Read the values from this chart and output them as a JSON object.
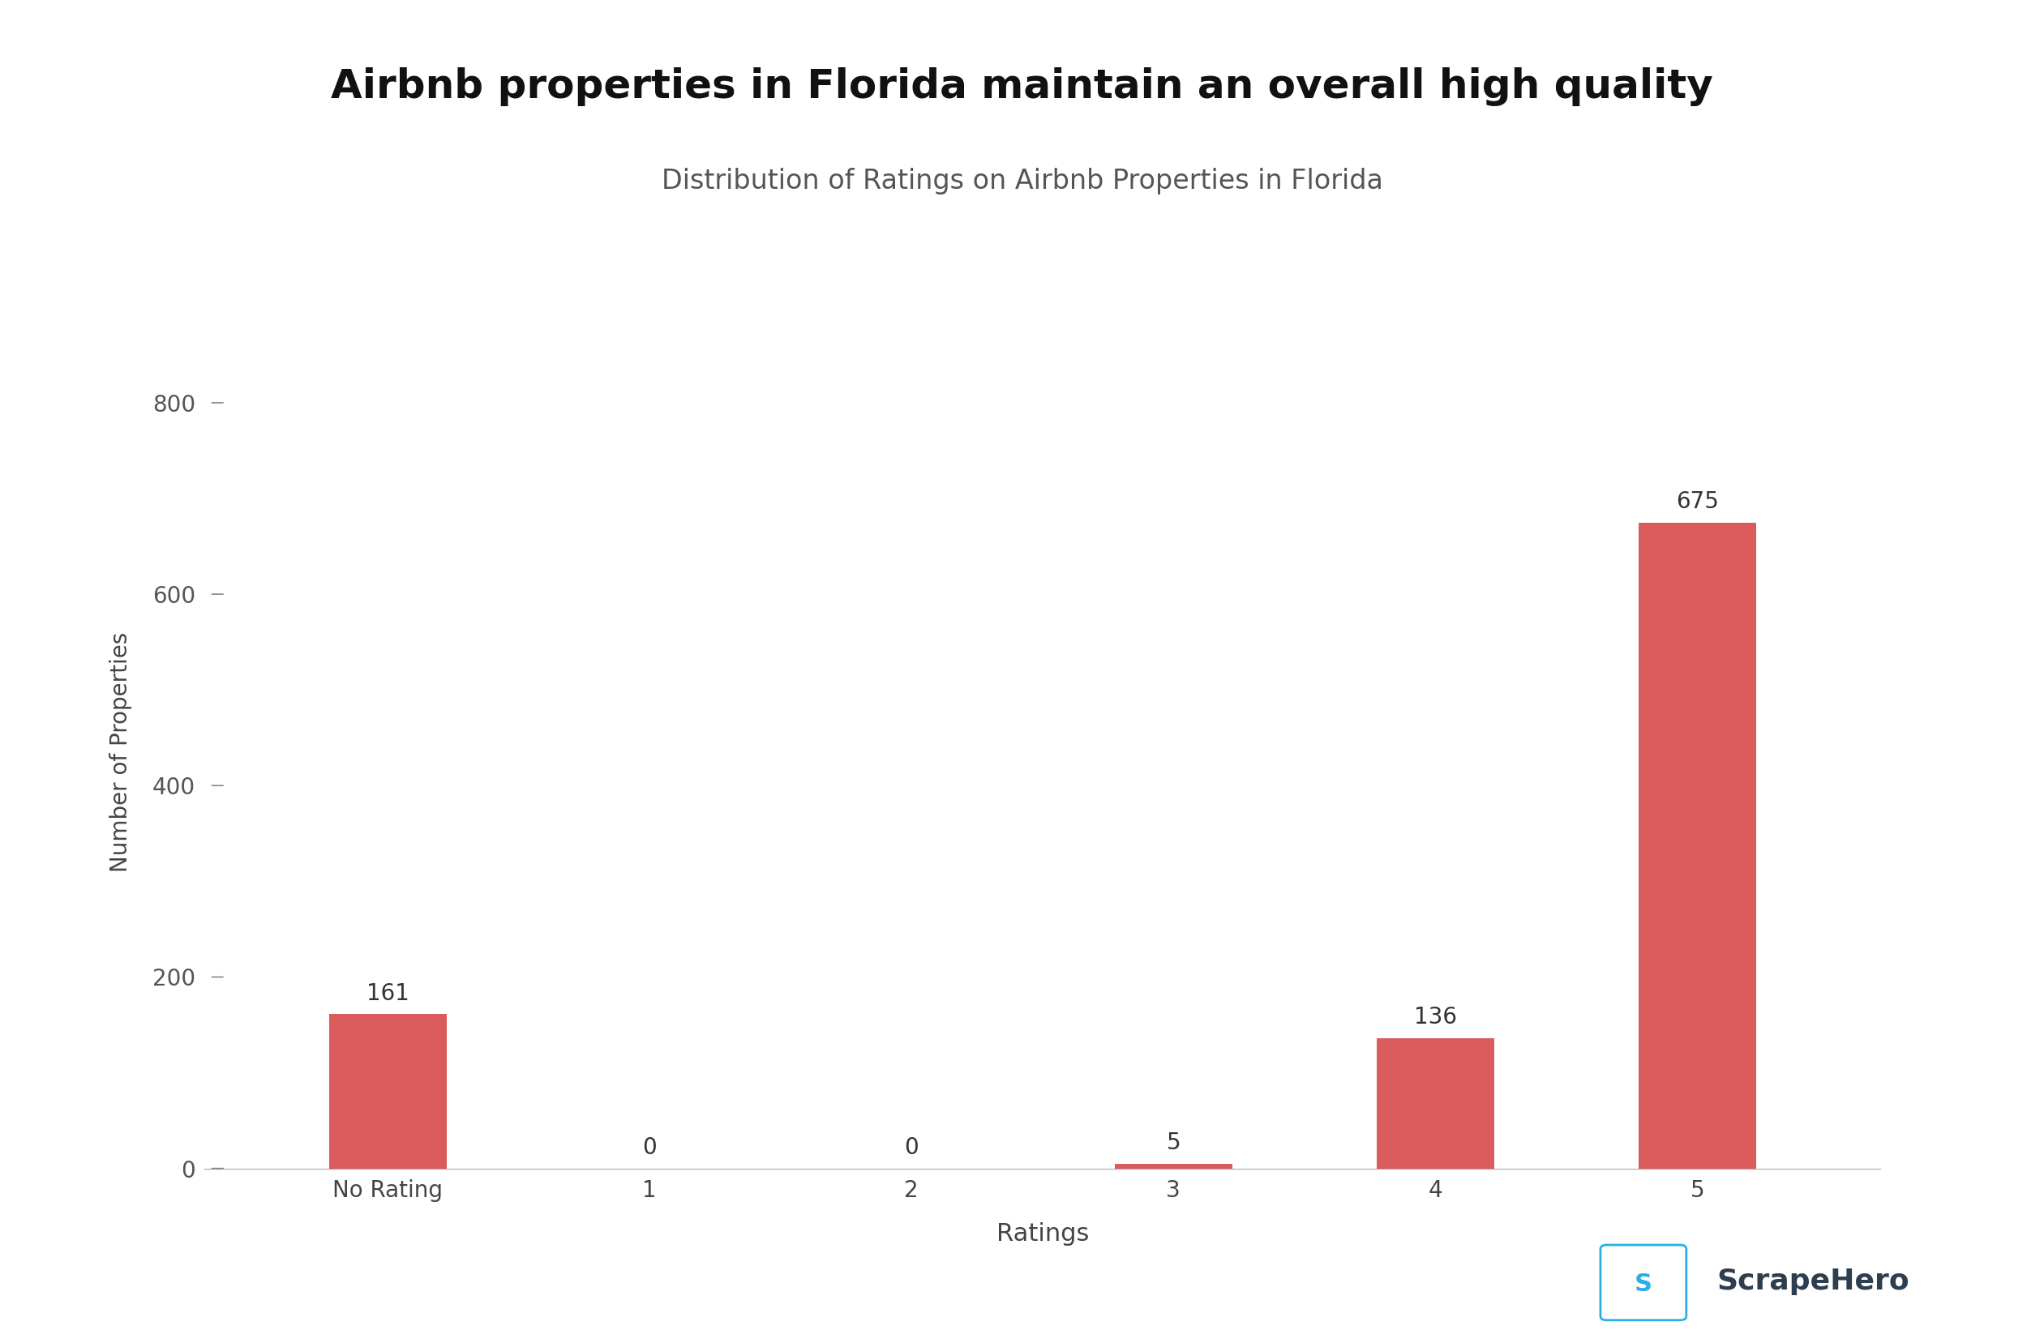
{
  "title": "Airbnb properties in Florida maintain an overall high quality",
  "subtitle": "Distribution of Ratings on Airbnb Properties in Florida",
  "xlabel": "Ratings",
  "ylabel": "Number of Properties",
  "categories": [
    "No Rating",
    "1",
    "2",
    "3",
    "4",
    "5"
  ],
  "values": [
    161,
    0,
    0,
    5,
    136,
    675
  ],
  "bar_color": "#d95b5b",
  "background_color": "#ffffff",
  "ylim": [
    0,
    870
  ],
  "yticks": [
    0,
    200,
    400,
    600,
    800
  ],
  "title_fontsize": 36,
  "subtitle_fontsize": 24,
  "xlabel_fontsize": 22,
  "ylabel_fontsize": 20,
  "tick_fontsize": 20,
  "annotation_fontsize": 20,
  "title_fontweight": "bold",
  "watermark_text": "ScrapeHero",
  "watermark_color": "#2d3e50",
  "watermark_icon_color": "#29aee6"
}
